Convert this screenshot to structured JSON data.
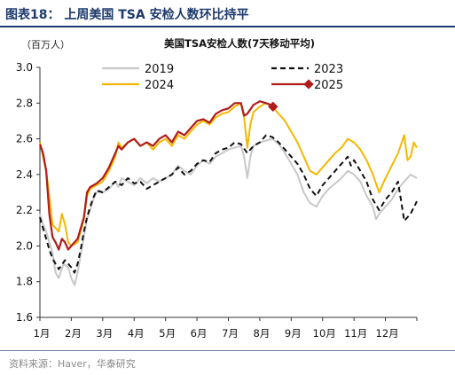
{
  "header": {
    "title": "图表18：  上周美国 TSA 安检人数环比持平"
  },
  "footer": {
    "source": "资料来源：Haver，华泰研究"
  },
  "colors": {
    "y2019": "#c8c8c8",
    "y2023": "#111111",
    "y2024": "#f5b800",
    "y2025": "#b01c1c",
    "accent": "#1d3a6e"
  },
  "chart_data": {
    "type": "line",
    "title": "美国TSA安检人数(7天移动平均)",
    "unit_label": "（百万人）",
    "ylim": [
      1.6,
      3.0
    ],
    "yticks": [
      1.6,
      1.8,
      2.0,
      2.2,
      2.4,
      2.6,
      2.8,
      3.0
    ],
    "ytick_labels": [
      "1.6",
      "1.8",
      "2.0",
      "2.2",
      "2.4",
      "2.6",
      "2.8",
      "3.0"
    ],
    "xlim": [
      0,
      12
    ],
    "month_labels": [
      "1月",
      "2月",
      "3月",
      "4月",
      "5月",
      "6月",
      "7月",
      "8月",
      "9月",
      "10月",
      "11月",
      "12月"
    ],
    "grid": false,
    "legend_position": "top",
    "series": [
      {
        "name": "2019",
        "style": "solid-gray",
        "points": [
          [
            0.0,
            2.18
          ],
          [
            0.1,
            2.12
          ],
          [
            0.2,
            2.08
          ],
          [
            0.3,
            2.02
          ],
          [
            0.4,
            1.96
          ],
          [
            0.5,
            1.85
          ],
          [
            0.6,
            1.82
          ],
          [
            0.75,
            1.9
          ],
          [
            0.9,
            1.88
          ],
          [
            1.0,
            1.82
          ],
          [
            1.1,
            1.78
          ],
          [
            1.2,
            1.85
          ],
          [
            1.3,
            1.95
          ],
          [
            1.4,
            2.05
          ],
          [
            1.5,
            2.15
          ],
          [
            1.6,
            2.2
          ],
          [
            1.7,
            2.26
          ],
          [
            1.8,
            2.3
          ],
          [
            1.9,
            2.31
          ],
          [
            2.0,
            2.3
          ],
          [
            2.2,
            2.32
          ],
          [
            2.4,
            2.36
          ],
          [
            2.5,
            2.33
          ],
          [
            2.6,
            2.38
          ],
          [
            2.8,
            2.36
          ],
          [
            3.0,
            2.34
          ],
          [
            3.2,
            2.38
          ],
          [
            3.4,
            2.35
          ],
          [
            3.6,
            2.38
          ],
          [
            3.8,
            2.36
          ],
          [
            4.0,
            2.38
          ],
          [
            4.2,
            2.4
          ],
          [
            4.4,
            2.45
          ],
          [
            4.6,
            2.42
          ],
          [
            4.8,
            2.4
          ],
          [
            5.0,
            2.45
          ],
          [
            5.2,
            2.48
          ],
          [
            5.4,
            2.46
          ],
          [
            5.6,
            2.5
          ],
          [
            5.8,
            2.52
          ],
          [
            6.0,
            2.54
          ],
          [
            6.2,
            2.55
          ],
          [
            6.4,
            2.56
          ],
          [
            6.5,
            2.5
          ],
          [
            6.6,
            2.38
          ],
          [
            6.7,
            2.5
          ],
          [
            6.8,
            2.56
          ],
          [
            7.0,
            2.58
          ],
          [
            7.2,
            2.59
          ],
          [
            7.4,
            2.6
          ],
          [
            7.6,
            2.57
          ],
          [
            7.8,
            2.52
          ],
          [
            8.0,
            2.46
          ],
          [
            8.2,
            2.4
          ],
          [
            8.4,
            2.3
          ],
          [
            8.6,
            2.24
          ],
          [
            8.8,
            2.22
          ],
          [
            9.0,
            2.28
          ],
          [
            9.2,
            2.32
          ],
          [
            9.4,
            2.35
          ],
          [
            9.6,
            2.38
          ],
          [
            9.8,
            2.42
          ],
          [
            10.0,
            2.4
          ],
          [
            10.2,
            2.36
          ],
          [
            10.4,
            2.28
          ],
          [
            10.6,
            2.22
          ],
          [
            10.7,
            2.15
          ],
          [
            10.8,
            2.18
          ],
          [
            11.0,
            2.22
          ],
          [
            11.2,
            2.26
          ],
          [
            11.4,
            2.32
          ],
          [
            11.6,
            2.36
          ],
          [
            11.8,
            2.4
          ],
          [
            12.0,
            2.38
          ]
        ]
      },
      {
        "name": "2023",
        "style": "dashed-black",
        "points": [
          [
            0.0,
            2.16
          ],
          [
            0.1,
            2.1
          ],
          [
            0.2,
            2.04
          ],
          [
            0.3,
            1.98
          ],
          [
            0.4,
            1.93
          ],
          [
            0.5,
            1.9
          ],
          [
            0.6,
            1.87
          ],
          [
            0.8,
            1.92
          ],
          [
            1.0,
            1.88
          ],
          [
            1.1,
            1.85
          ],
          [
            1.2,
            1.9
          ],
          [
            1.3,
            1.98
          ],
          [
            1.4,
            2.08
          ],
          [
            1.5,
            2.16
          ],
          [
            1.6,
            2.22
          ],
          [
            1.7,
            2.27
          ],
          [
            1.8,
            2.31
          ],
          [
            2.0,
            2.3
          ],
          [
            2.2,
            2.33
          ],
          [
            2.4,
            2.36
          ],
          [
            2.6,
            2.34
          ],
          [
            2.8,
            2.38
          ],
          [
            3.0,
            2.35
          ],
          [
            3.2,
            2.36
          ],
          [
            3.4,
            2.32
          ],
          [
            3.6,
            2.34
          ],
          [
            3.8,
            2.36
          ],
          [
            4.0,
            2.38
          ],
          [
            4.2,
            2.4
          ],
          [
            4.4,
            2.44
          ],
          [
            4.6,
            2.4
          ],
          [
            4.8,
            2.42
          ],
          [
            5.0,
            2.46
          ],
          [
            5.2,
            2.48
          ],
          [
            5.4,
            2.47
          ],
          [
            5.6,
            2.52
          ],
          [
            5.8,
            2.54
          ],
          [
            6.0,
            2.55
          ],
          [
            6.2,
            2.58
          ],
          [
            6.4,
            2.57
          ],
          [
            6.6,
            2.52
          ],
          [
            6.8,
            2.56
          ],
          [
            7.0,
            2.58
          ],
          [
            7.2,
            2.62
          ],
          [
            7.4,
            2.61
          ],
          [
            7.6,
            2.58
          ],
          [
            7.8,
            2.54
          ],
          [
            8.0,
            2.5
          ],
          [
            8.2,
            2.46
          ],
          [
            8.4,
            2.4
          ],
          [
            8.6,
            2.32
          ],
          [
            8.8,
            2.28
          ],
          [
            9.0,
            2.34
          ],
          [
            9.2,
            2.38
          ],
          [
            9.4,
            2.42
          ],
          [
            9.6,
            2.46
          ],
          [
            9.8,
            2.5
          ],
          [
            9.9,
            2.45
          ],
          [
            10.0,
            2.48
          ],
          [
            10.2,
            2.42
          ],
          [
            10.4,
            2.36
          ],
          [
            10.6,
            2.26
          ],
          [
            10.8,
            2.2
          ],
          [
            11.0,
            2.26
          ],
          [
            11.2,
            2.3
          ],
          [
            11.4,
            2.36
          ],
          [
            11.6,
            2.14
          ],
          [
            11.8,
            2.18
          ],
          [
            12.0,
            2.25
          ]
        ]
      },
      {
        "name": "2024",
        "style": "solid-gold",
        "points": [
          [
            0.0,
            2.58
          ],
          [
            0.1,
            2.5
          ],
          [
            0.2,
            2.42
          ],
          [
            0.3,
            2.28
          ],
          [
            0.4,
            2.12
          ],
          [
            0.5,
            2.1
          ],
          [
            0.6,
            2.08
          ],
          [
            0.7,
            2.18
          ],
          [
            0.8,
            2.12
          ],
          [
            0.9,
            2.02
          ],
          [
            1.0,
            2.0
          ],
          [
            1.2,
            2.02
          ],
          [
            1.4,
            2.15
          ],
          [
            1.5,
            2.28
          ],
          [
            1.6,
            2.32
          ],
          [
            1.8,
            2.34
          ],
          [
            2.0,
            2.36
          ],
          [
            2.2,
            2.42
          ],
          [
            2.4,
            2.5
          ],
          [
            2.5,
            2.58
          ],
          [
            2.6,
            2.55
          ],
          [
            2.8,
            2.58
          ],
          [
            3.0,
            2.6
          ],
          [
            3.2,
            2.56
          ],
          [
            3.4,
            2.58
          ],
          [
            3.6,
            2.54
          ],
          [
            3.8,
            2.58
          ],
          [
            4.0,
            2.6
          ],
          [
            4.2,
            2.56
          ],
          [
            4.4,
            2.62
          ],
          [
            4.6,
            2.6
          ],
          [
            4.8,
            2.64
          ],
          [
            5.0,
            2.68
          ],
          [
            5.2,
            2.7
          ],
          [
            5.4,
            2.68
          ],
          [
            5.6,
            2.72
          ],
          [
            5.8,
            2.74
          ],
          [
            6.0,
            2.75
          ],
          [
            6.2,
            2.78
          ],
          [
            6.4,
            2.8
          ],
          [
            6.5,
            2.72
          ],
          [
            6.6,
            2.55
          ],
          [
            6.7,
            2.68
          ],
          [
            6.8,
            2.75
          ],
          [
            7.0,
            2.78
          ],
          [
            7.2,
            2.8
          ],
          [
            7.4,
            2.78
          ],
          [
            7.6,
            2.74
          ],
          [
            7.8,
            2.7
          ],
          [
            8.0,
            2.64
          ],
          [
            8.2,
            2.58
          ],
          [
            8.4,
            2.5
          ],
          [
            8.6,
            2.42
          ],
          [
            8.8,
            2.4
          ],
          [
            9.0,
            2.44
          ],
          [
            9.2,
            2.48
          ],
          [
            9.4,
            2.52
          ],
          [
            9.6,
            2.55
          ],
          [
            9.8,
            2.6
          ],
          [
            10.0,
            2.58
          ],
          [
            10.2,
            2.54
          ],
          [
            10.4,
            2.48
          ],
          [
            10.6,
            2.4
          ],
          [
            10.8,
            2.3
          ],
          [
            11.0,
            2.38
          ],
          [
            11.2,
            2.45
          ],
          [
            11.4,
            2.52
          ],
          [
            11.6,
            2.62
          ],
          [
            11.7,
            2.48
          ],
          [
            11.8,
            2.5
          ],
          [
            11.9,
            2.58
          ],
          [
            12.0,
            2.55
          ]
        ]
      },
      {
        "name": "2025",
        "style": "solid-red-marker",
        "points": [
          [
            0.0,
            2.57
          ],
          [
            0.1,
            2.52
          ],
          [
            0.2,
            2.42
          ],
          [
            0.3,
            2.18
          ],
          [
            0.4,
            2.05
          ],
          [
            0.5,
            2.02
          ],
          [
            0.6,
            1.98
          ],
          [
            0.7,
            2.04
          ],
          [
            0.8,
            2.02
          ],
          [
            0.9,
            1.98
          ],
          [
            1.0,
            2.0
          ],
          [
            1.2,
            2.04
          ],
          [
            1.4,
            2.16
          ],
          [
            1.5,
            2.3
          ],
          [
            1.6,
            2.33
          ],
          [
            1.8,
            2.35
          ],
          [
            2.0,
            2.38
          ],
          [
            2.2,
            2.44
          ],
          [
            2.4,
            2.52
          ],
          [
            2.5,
            2.56
          ],
          [
            2.6,
            2.54
          ],
          [
            2.8,
            2.58
          ],
          [
            3.0,
            2.6
          ],
          [
            3.2,
            2.56
          ],
          [
            3.4,
            2.58
          ],
          [
            3.6,
            2.56
          ],
          [
            3.8,
            2.6
          ],
          [
            4.0,
            2.62
          ],
          [
            4.2,
            2.58
          ],
          [
            4.4,
            2.64
          ],
          [
            4.6,
            2.62
          ],
          [
            4.8,
            2.66
          ],
          [
            5.0,
            2.7
          ],
          [
            5.2,
            2.71
          ],
          [
            5.4,
            2.69
          ],
          [
            5.6,
            2.74
          ],
          [
            5.8,
            2.76
          ],
          [
            6.0,
            2.77
          ],
          [
            6.2,
            2.8
          ],
          [
            6.4,
            2.8
          ],
          [
            6.5,
            2.73
          ],
          [
            6.6,
            2.74
          ],
          [
            6.8,
            2.79
          ],
          [
            7.0,
            2.81
          ],
          [
            7.2,
            2.8
          ],
          [
            7.35,
            2.79
          ],
          [
            7.42,
            2.78
          ]
        ]
      }
    ]
  }
}
